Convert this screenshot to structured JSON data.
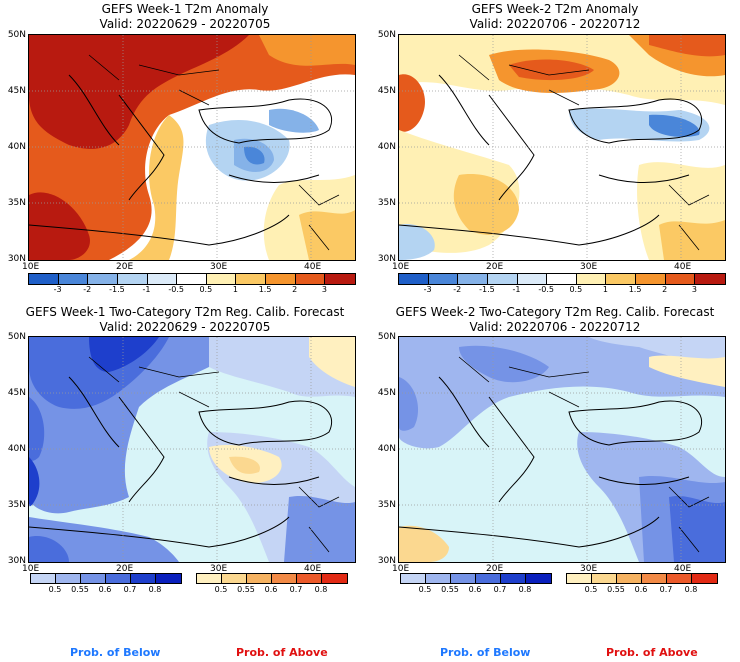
{
  "panels": [
    {
      "title": "GEFS Week-1 T2m Anomaly",
      "valid": "Valid: 20220629 - 20220705"
    },
    {
      "title": "GEFS Week-2 T2m Anomaly",
      "valid": "Valid: 20220706 - 20220712"
    },
    {
      "title": "GEFS Week-1 Two-Category T2m Reg. Calib. Forecast",
      "valid": "Valid: 20220629 - 20220705"
    },
    {
      "title": "GEFS Week-2 Two-Category T2m Reg. Calib. Forecast",
      "valid": "Valid: 20220706 - 20220712"
    }
  ],
  "lat_labels": [
    "50N",
    "45N",
    "40N",
    "35N",
    "30N"
  ],
  "lon_labels": [
    "10E",
    "20E",
    "30E",
    "40E"
  ],
  "anomaly_colorbar": {
    "labels": [
      "-3",
      "-2",
      "-1.5",
      "-1",
      "-0.5",
      "0.5",
      "1",
      "1.5",
      "2",
      "3"
    ],
    "colors": [
      "#1f5fc8",
      "#4a86d9",
      "#85b2e8",
      "#b4d4f2",
      "#dcebf9",
      "#ffffff",
      "#fff0b4",
      "#fbc964",
      "#f5952e",
      "#e55a1c",
      "#b81a10"
    ]
  },
  "prob_colorbar": {
    "below_labels": [
      "0.5",
      "0.55",
      "0.6",
      "0.7",
      "0.8"
    ],
    "below_colors": [
      "#c5d5f5",
      "#9fb6ef",
      "#7593e6",
      "#4a6ddc",
      "#1e3fcc",
      "#0a1fbd"
    ],
    "above_labels": [
      "0.5",
      "0.55",
      "0.6",
      "0.7",
      "0.8"
    ],
    "above_colors": [
      "#fff0c0",
      "#fbd890",
      "#f5b261",
      "#f28a46",
      "#ec5a2a",
      "#e22a14"
    ]
  },
  "legend": {
    "below_left": "Prob. of Below",
    "above_left": "Prob. of Above",
    "below_right": "Prob. of Below",
    "above_right": "Prob. of Above",
    "below_color": "#1e78ff",
    "above_color": "#e01010"
  }
}
